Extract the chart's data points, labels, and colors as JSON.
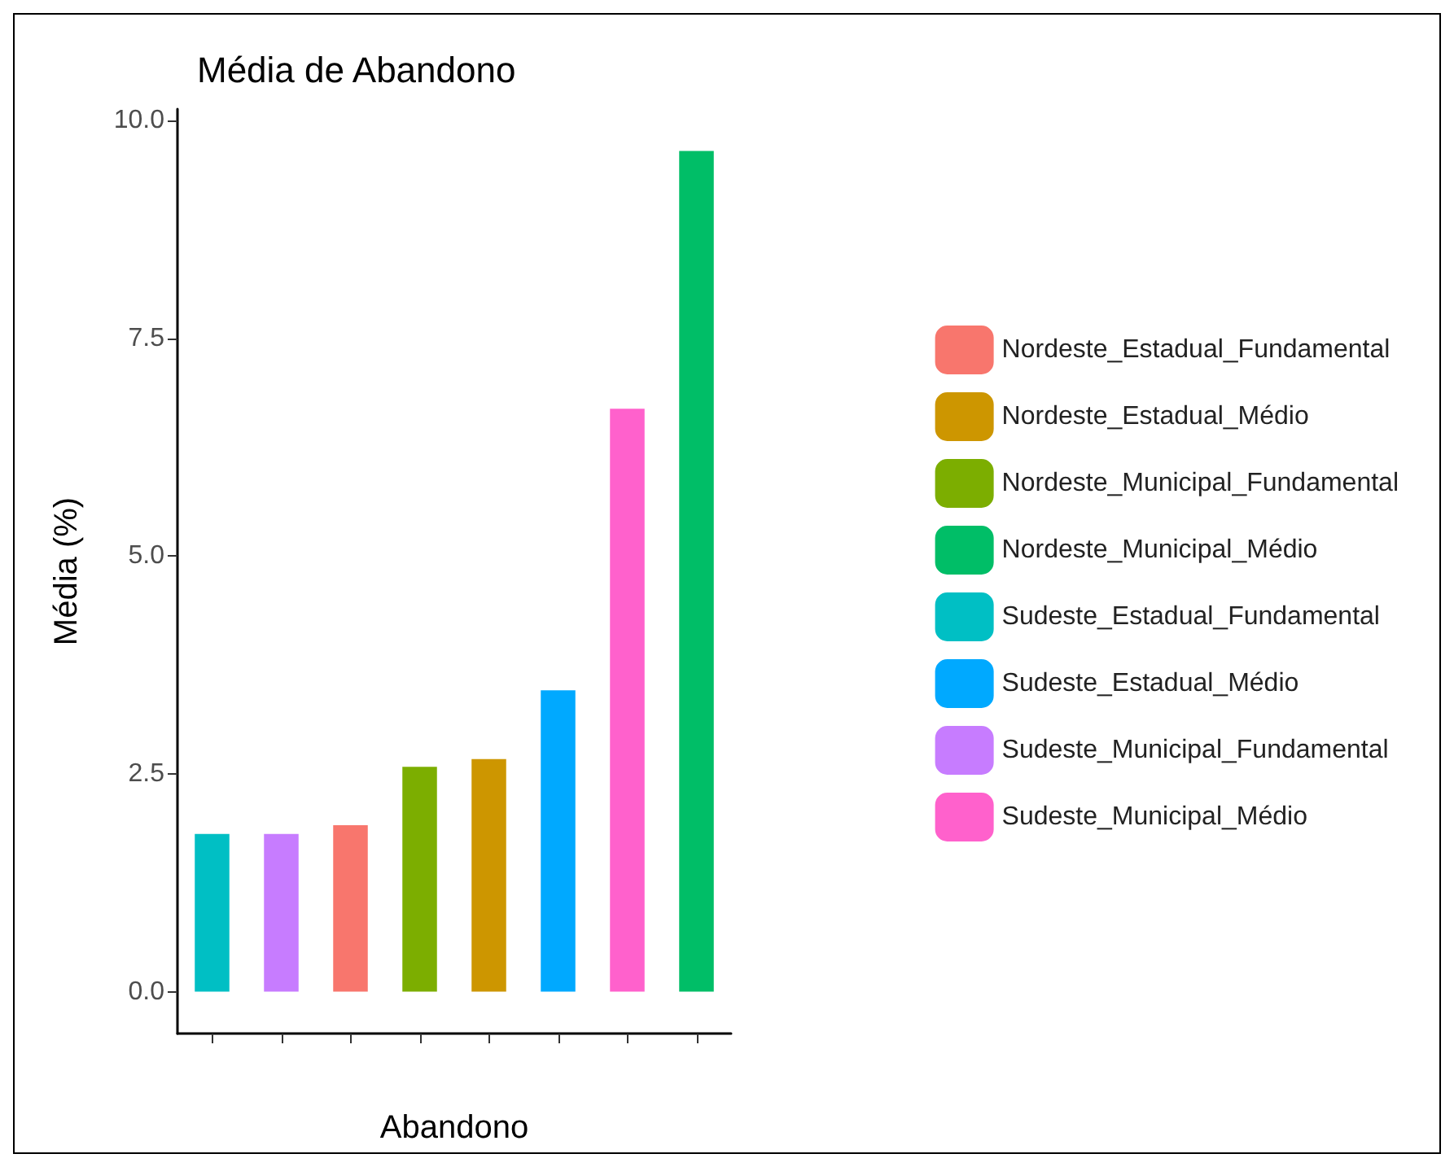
{
  "chart_data": {
    "type": "bar",
    "title": "Média de Abandono",
    "xlabel": "Abandono",
    "ylabel": "Média (%)",
    "categories": [
      null,
      null,
      null,
      null,
      null,
      null,
      null,
      null
    ],
    "series": [
      {
        "name": "Nordeste_Estadual_Fundamental",
        "color": "#f8766d",
        "values": [
          null,
          null,
          1.91,
          null,
          null,
          null,
          null,
          null
        ]
      },
      {
        "name": "Nordeste_Estadual_Médio",
        "color": "#cd9600",
        "values": [
          null,
          null,
          null,
          null,
          2.67,
          null,
          null,
          null
        ]
      },
      {
        "name": "Nordeste_Municipal_Fundamental",
        "color": "#7cae00",
        "values": [
          null,
          null,
          null,
          2.58,
          null,
          null,
          null,
          null
        ]
      },
      {
        "name": "Nordeste_Municipal_Médio",
        "color": "#00be67",
        "values": [
          null,
          null,
          null,
          null,
          null,
          null,
          null,
          9.65
        ]
      },
      {
        "name": "Sudeste_Estadual_Fundamental",
        "color": "#00bfc4",
        "values": [
          1.81,
          null,
          null,
          null,
          null,
          null,
          null,
          null
        ]
      },
      {
        "name": "Sudeste_Estadual_Médio",
        "color": "#00a9ff",
        "values": [
          null,
          null,
          null,
          null,
          null,
          3.46,
          null,
          null
        ]
      },
      {
        "name": "Sudeste_Municipal_Fundamental",
        "color": "#c77cff",
        "values": [
          null,
          1.81,
          null,
          null,
          null,
          null,
          null,
          null
        ]
      },
      {
        "name": "Sudeste_Municipal_Médio",
        "color": "#ff61cc",
        "values": [
          null,
          null,
          null,
          null,
          null,
          null,
          6.69,
          null
        ]
      }
    ],
    "ylim": [
      -0.48,
      10.13
    ],
    "yticks": [
      {
        "value": 0,
        "label": "0.0"
      },
      {
        "value": 2.5,
        "label": "2.5"
      },
      {
        "value": 5,
        "label": "5.0"
      },
      {
        "value": 7.5,
        "label": "7.5"
      },
      {
        "value": 10,
        "label": "10.0"
      }
    ],
    "tick_labels": "y",
    "grid": false,
    "legend": "right"
  }
}
